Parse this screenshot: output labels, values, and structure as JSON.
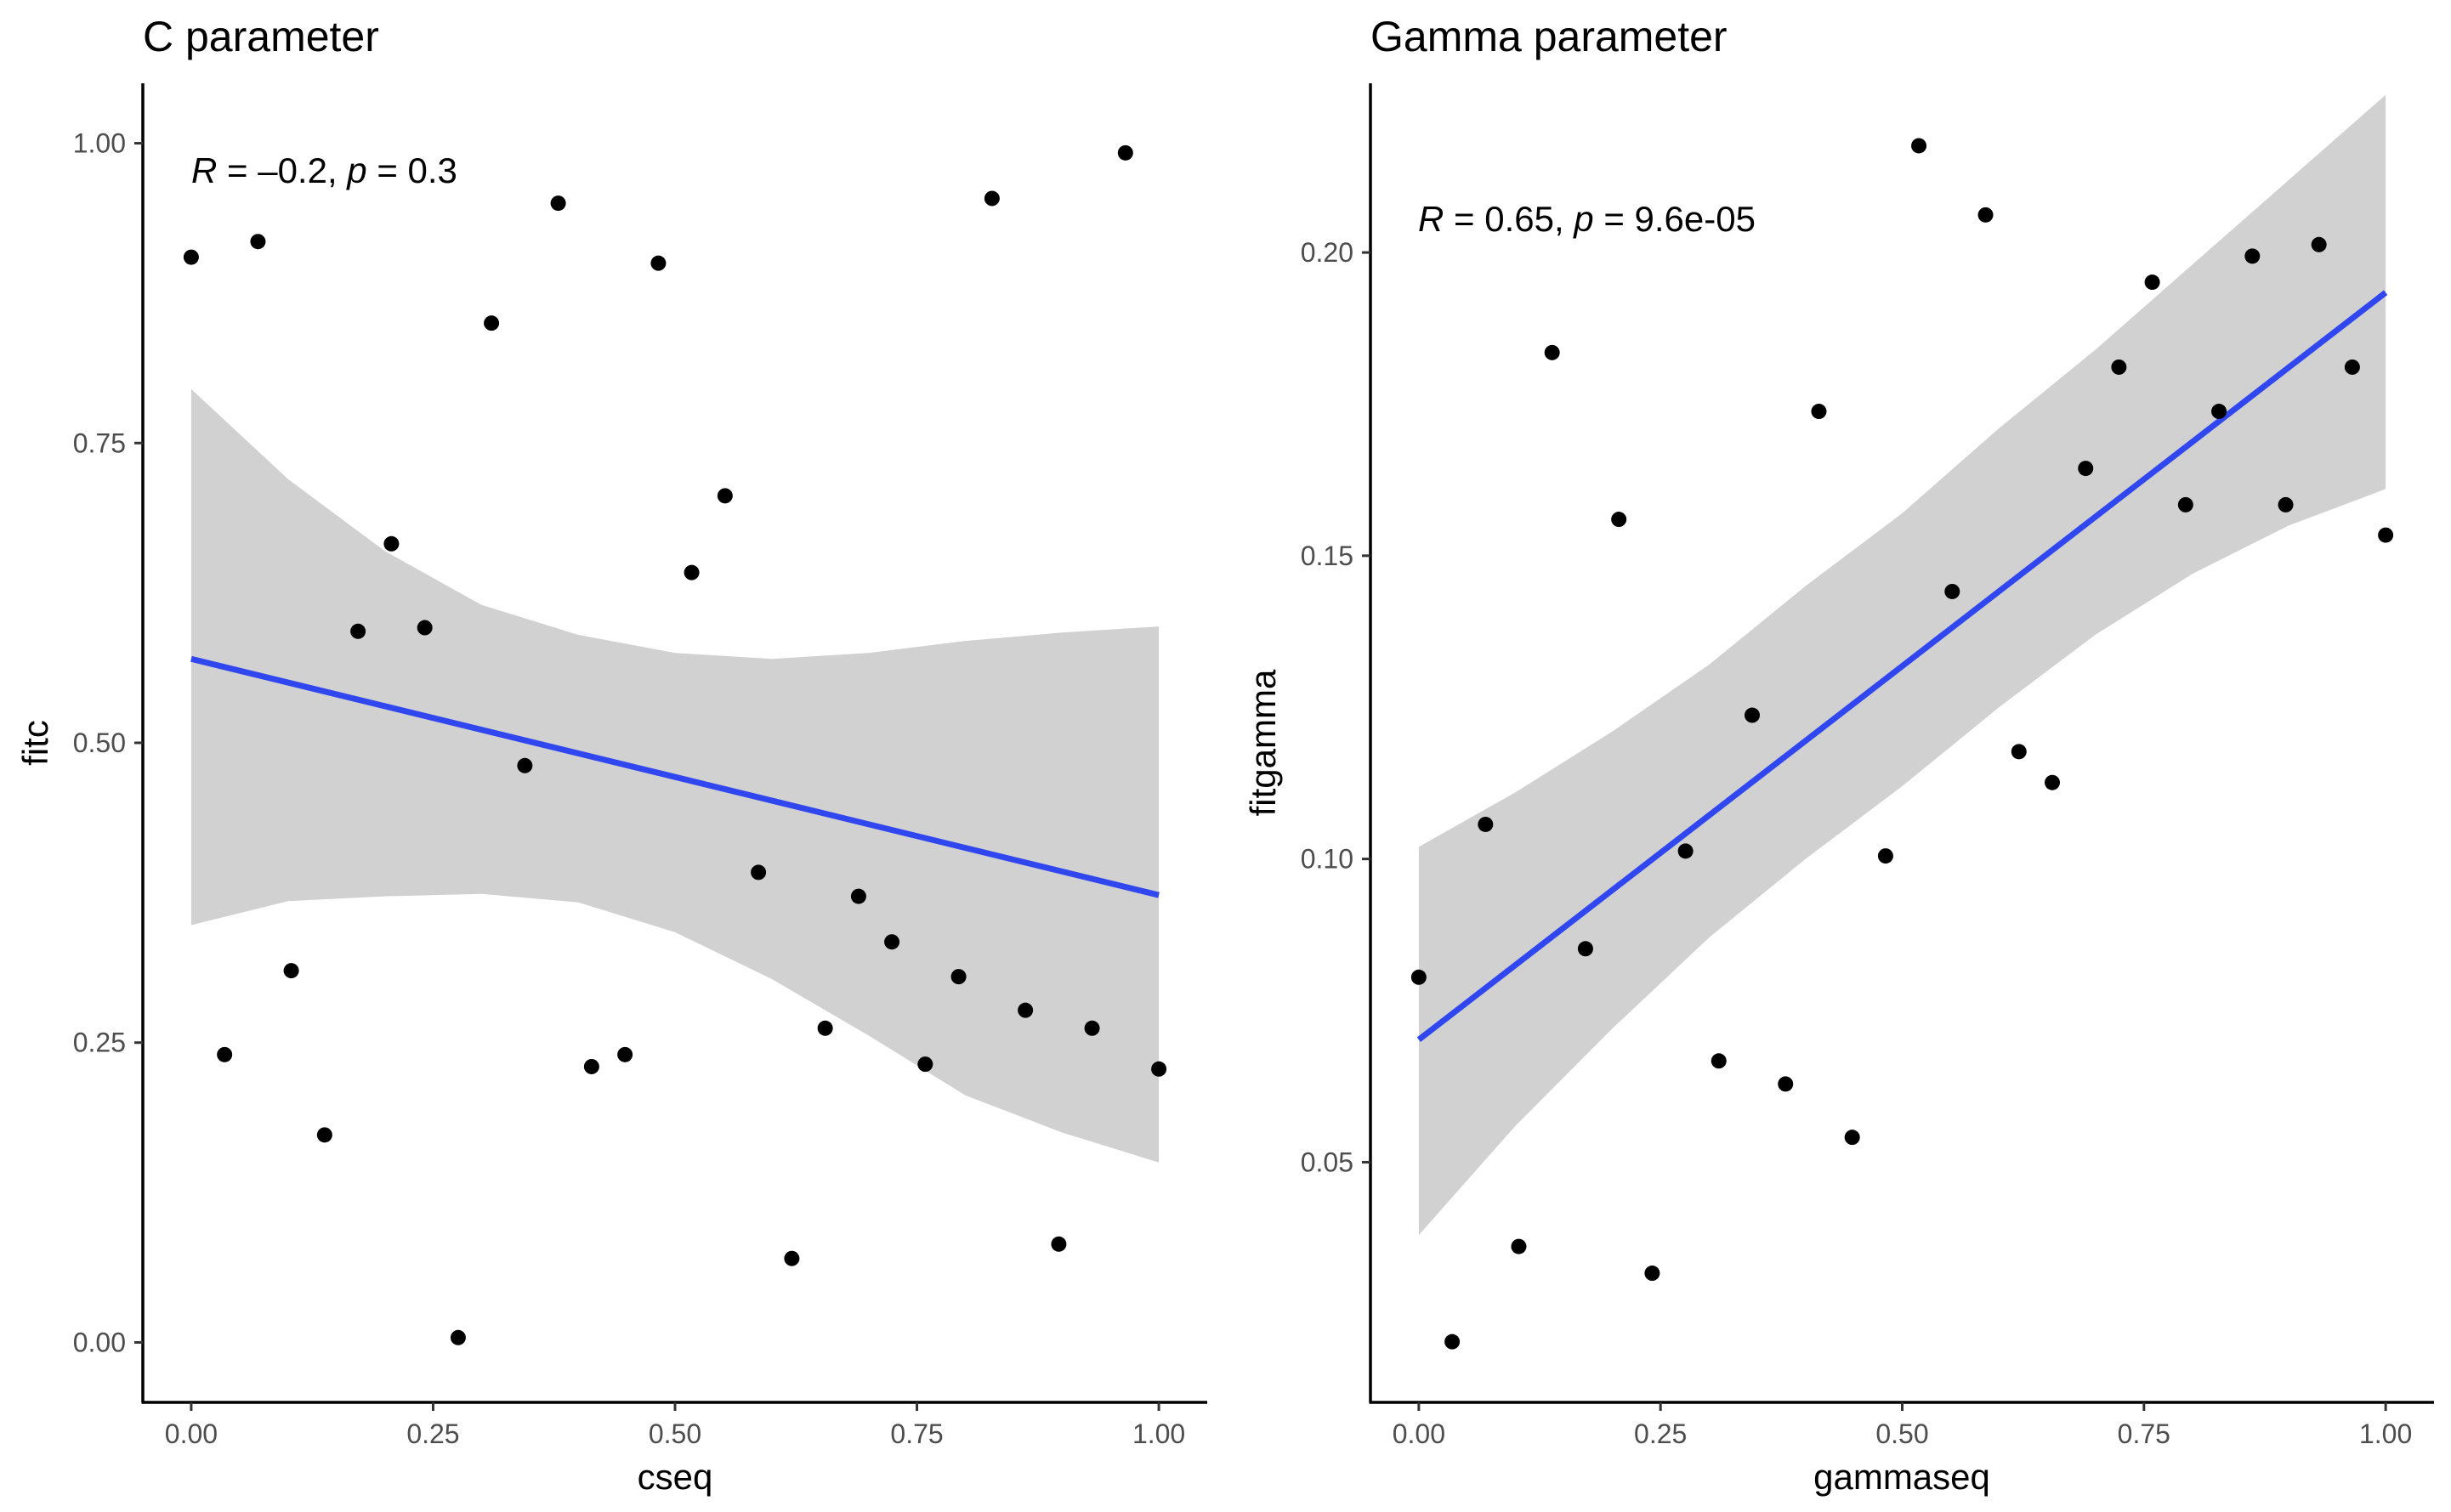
{
  "chart_data": [
    {
      "type": "scatter",
      "title": "C parameter",
      "xlabel": "cseq",
      "ylabel": "fitc",
      "xlim": [
        -0.05,
        1.05
      ],
      "ylim": [
        -0.05,
        1.05
      ],
      "xticks": [
        0,
        0.25,
        0.5,
        0.75,
        1
      ],
      "xtick_labels": [
        "0.00",
        "0.25",
        "0.50",
        "0.75",
        "1.00"
      ],
      "yticks": [
        0,
        0.25,
        0.5,
        0.75,
        1
      ],
      "ytick_labels": [
        "0.00",
        "0.25",
        "0.50",
        "0.75",
        "1.00"
      ],
      "grid": false,
      "legend": "none",
      "annotation": {
        "r_symbol": "R",
        "r_text": " = –0.2, ",
        "p_symbol": "p",
        "p_text": " = 0.3"
      },
      "fit_color": "#3047f0",
      "fit_line": {
        "intercept": 0.57,
        "slope": -0.197
      },
      "ribbon": {
        "x": [
          0,
          0.1,
          0.2,
          0.3,
          0.4,
          0.5,
          0.6,
          0.7,
          0.8,
          0.9,
          1.0
        ],
        "lower": [
          0.348,
          0.368,
          0.372,
          0.374,
          0.367,
          0.342,
          0.303,
          0.256,
          0.206,
          0.175,
          0.15
        ],
        "upper": [
          0.795,
          0.72,
          0.66,
          0.615,
          0.59,
          0.575,
          0.57,
          0.575,
          0.585,
          0.592,
          0.597
        ]
      },
      "x": [
        0,
        0.0345,
        0.069,
        0.1034,
        0.1379,
        0.1724,
        0.2069,
        0.2414,
        0.2759,
        0.3103,
        0.3448,
        0.3793,
        0.4138,
        0.4483,
        0.4828,
        0.5172,
        0.5517,
        0.5862,
        0.6207,
        0.6552,
        0.6897,
        0.7241,
        0.7586,
        0.7931,
        0.8276,
        0.8621,
        0.8966,
        0.931,
        0.9655,
        1.0
      ],
      "y": [
        0.905,
        0.24,
        0.918,
        0.31,
        0.173,
        0.593,
        0.666,
        0.596,
        0.004,
        0.85,
        0.481,
        0.95,
        0.23,
        0.24,
        0.9,
        0.642,
        0.706,
        0.392,
        0.07,
        0.262,
        0.372,
        0.334,
        0.232,
        0.305,
        0.954,
        0.277,
        0.082,
        0.262,
        0.992,
        0.228
      ]
    },
    {
      "type": "scatter",
      "title": "Gamma parameter",
      "xlabel": "gammaseq",
      "ylabel": "fitgamma",
      "xlim": [
        -0.05,
        1.05
      ],
      "ylim": [
        0.0104,
        0.2279
      ],
      "xticks": [
        0,
        0.25,
        0.5,
        0.75,
        1
      ],
      "xtick_labels": [
        "0.00",
        "0.25",
        "0.50",
        "0.75",
        "1.00"
      ],
      "yticks": [
        0.05,
        0.1,
        0.15,
        0.2
      ],
      "ytick_labels": [
        "0.05",
        "0.10",
        "0.15",
        "0.20"
      ],
      "grid": false,
      "legend": "none",
      "annotation": {
        "r_symbol": "R",
        "r_text": " = 0.65, ",
        "p_symbol": "p",
        "p_text": " = 9.6e-05"
      },
      "fit_color": "#3047f0",
      "fit_line": {
        "intercept": 0.0702,
        "slope": 0.1232
      },
      "ribbon": {
        "x": [
          0,
          0.1,
          0.2,
          0.3,
          0.4,
          0.5,
          0.6,
          0.7,
          0.8,
          0.9,
          1.0
        ],
        "lower": [
          0.038,
          0.056,
          0.072,
          0.087,
          0.1,
          0.112,
          0.125,
          0.137,
          0.147,
          0.155,
          0.161
        ],
        "upper": [
          0.102,
          0.111,
          0.121,
          0.132,
          0.145,
          0.157,
          0.171,
          0.184,
          0.198,
          0.212,
          0.226
        ]
      },
      "x": [
        0,
        0.0345,
        0.069,
        0.1034,
        0.1379,
        0.1724,
        0.2069,
        0.2414,
        0.2759,
        0.3103,
        0.3448,
        0.3793,
        0.4138,
        0.4483,
        0.4828,
        0.5172,
        0.5517,
        0.5862,
        0.6207,
        0.6552,
        0.6897,
        0.7241,
        0.7586,
        0.7931,
        0.8276,
        0.8621,
        0.8966,
        0.931,
        0.9655,
        1.0
      ],
      "y": [
        0.0805,
        0.0204,
        0.1057,
        0.0361,
        0.1835,
        0.0852,
        0.156,
        0.0317,
        0.1013,
        0.0667,
        0.1237,
        0.0629,
        0.1738,
        0.0541,
        0.1005,
        0.2176,
        0.1441,
        0.2062,
        0.1177,
        0.1126,
        0.1644,
        0.1811,
        0.1951,
        0.1584,
        0.1738,
        0.1994,
        0.1584,
        0.2013,
        0.1811,
        0.1534
      ]
    }
  ]
}
